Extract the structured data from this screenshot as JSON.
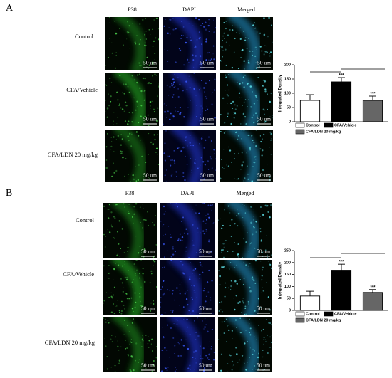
{
  "figure": {
    "panels": [
      {
        "label": "A",
        "columns": [
          "P38",
          "DAPI",
          "Merged"
        ],
        "rows": [
          "Control",
          "CFA/Vehicle",
          "CFA/LDN 20 mg/kg"
        ],
        "scale_bar": "50 um"
      },
      {
        "label": "B",
        "columns": [
          "P38",
          "DAPI",
          "Merged"
        ],
        "rows": [
          "Control",
          "CFA/Vehicle",
          "CFA/LDN 20 mg/kg"
        ],
        "scale_bar": "50 um"
      }
    ]
  },
  "chart_data": [
    {
      "type": "bar",
      "y_label": "Integrated Density",
      "categories": [
        null
      ],
      "ylim": [
        0,
        200
      ],
      "yticks": [
        0,
        50,
        100,
        150,
        200
      ],
      "series": [
        {
          "name": "Control",
          "color": "#ffffff",
          "values": [
            75
          ],
          "errors": [
            20
          ]
        },
        {
          "name": "CFA/Vehicle",
          "color": "#000000",
          "values": [
            140
          ],
          "errors": [
            15
          ],
          "annotation": "***"
        },
        {
          "name": "CFA/LDN 20 mg/kg",
          "color": "#666666",
          "values": [
            75
          ],
          "errors": [
            15
          ],
          "annotation": "***"
        }
      ]
    },
    {
      "type": "bar",
      "y_label": "Integrated Density",
      "categories": [
        null
      ],
      "ylim": [
        0,
        250
      ],
      "yticks": [
        0,
        50,
        100,
        150,
        200,
        250
      ],
      "series": [
        {
          "name": "Control",
          "color": "#ffffff",
          "values": [
            60
          ],
          "errors": [
            20
          ]
        },
        {
          "name": "CFA/Vehicle",
          "color": "#000000",
          "values": [
            168
          ],
          "errors": [
            25
          ],
          "annotation": "***"
        },
        {
          "name": "CFA/LDN 20 mg/kg",
          "color": "#666666",
          "values": [
            75
          ],
          "errors": [
            12
          ],
          "annotation": "***"
        }
      ]
    }
  ]
}
